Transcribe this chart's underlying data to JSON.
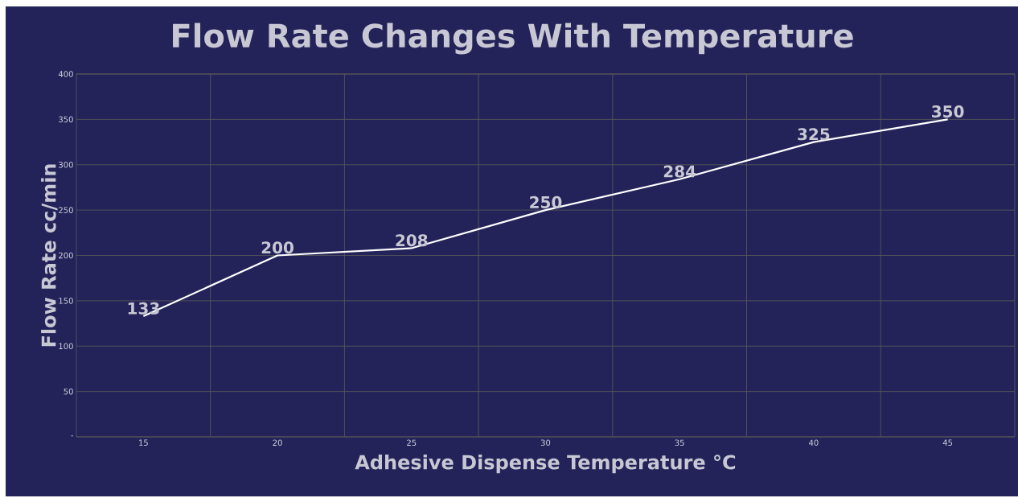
{
  "chart_data": {
    "type": "line",
    "title": "Flow Rate Changes With Temperature",
    "xlabel": "Adhesive Dispense Temperature °C",
    "ylabel": "Flow Rate cc/min",
    "categories": [
      "15",
      "20",
      "25",
      "30",
      "35",
      "40",
      "45"
    ],
    "values": [
      133,
      200,
      208,
      250,
      284,
      325,
      350
    ],
    "color": "#ffffff",
    "ylim": [
      0,
      400
    ],
    "yticks": [
      {
        "value": 0,
        "label": "-"
      },
      50,
      100,
      150,
      200,
      250,
      300,
      350,
      400
    ],
    "grid": true,
    "data_labels": true,
    "marker": "none",
    "line_style": "solid"
  }
}
